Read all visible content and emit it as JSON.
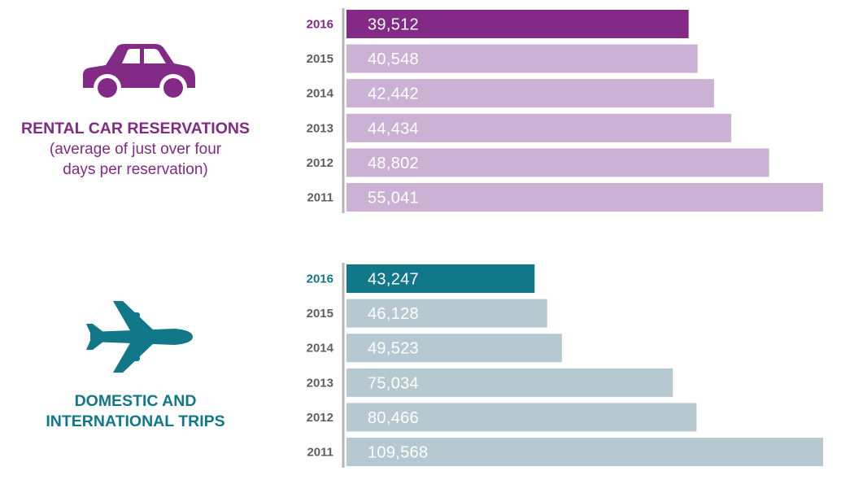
{
  "colors": {
    "rental_accent": "#822a85",
    "rental_bar": "#cbb1d3",
    "trips_accent": "#117889",
    "trips_bar": "#b6c8d0",
    "year_label": "#5f5f5f",
    "axis": "#b4b4b4"
  },
  "panels": {
    "rental": {
      "icon": "car-icon",
      "title": "RENTAL CAR RESERVATIONS",
      "subtitle_line1": "(average of just over four",
      "subtitle_line2": "days per reservation)"
    },
    "trips": {
      "icon": "airplane-icon",
      "title_line1": "DOMESTIC AND",
      "title_line2": "INTERNATIONAL TRIPS"
    }
  },
  "chart_data": [
    {
      "type": "bar",
      "orientation": "horizontal",
      "title": "RENTAL CAR RESERVATIONS",
      "categories": [
        "2016",
        "2015",
        "2014",
        "2013",
        "2012",
        "2011"
      ],
      "values": [
        39512,
        40548,
        42442,
        44434,
        48802,
        55041
      ],
      "value_labels": [
        "39,512",
        "40,548",
        "42,442",
        "44,434",
        "48,802",
        "55,041"
      ],
      "highlight": "2016",
      "xlim": [
        0,
        55041
      ]
    },
    {
      "type": "bar",
      "orientation": "horizontal",
      "title": "DOMESTIC AND INTERNATIONAL TRIPS",
      "categories": [
        "2016",
        "2015",
        "2014",
        "2013",
        "2012",
        "2011"
      ],
      "values": [
        43247,
        46128,
        49523,
        75034,
        80466,
        109568
      ],
      "value_labels": [
        "43,247",
        "46,128",
        "49,523",
        "75,034",
        "80,466",
        "109,568"
      ],
      "highlight": "2016",
      "xlim": [
        0,
        109568
      ]
    }
  ]
}
